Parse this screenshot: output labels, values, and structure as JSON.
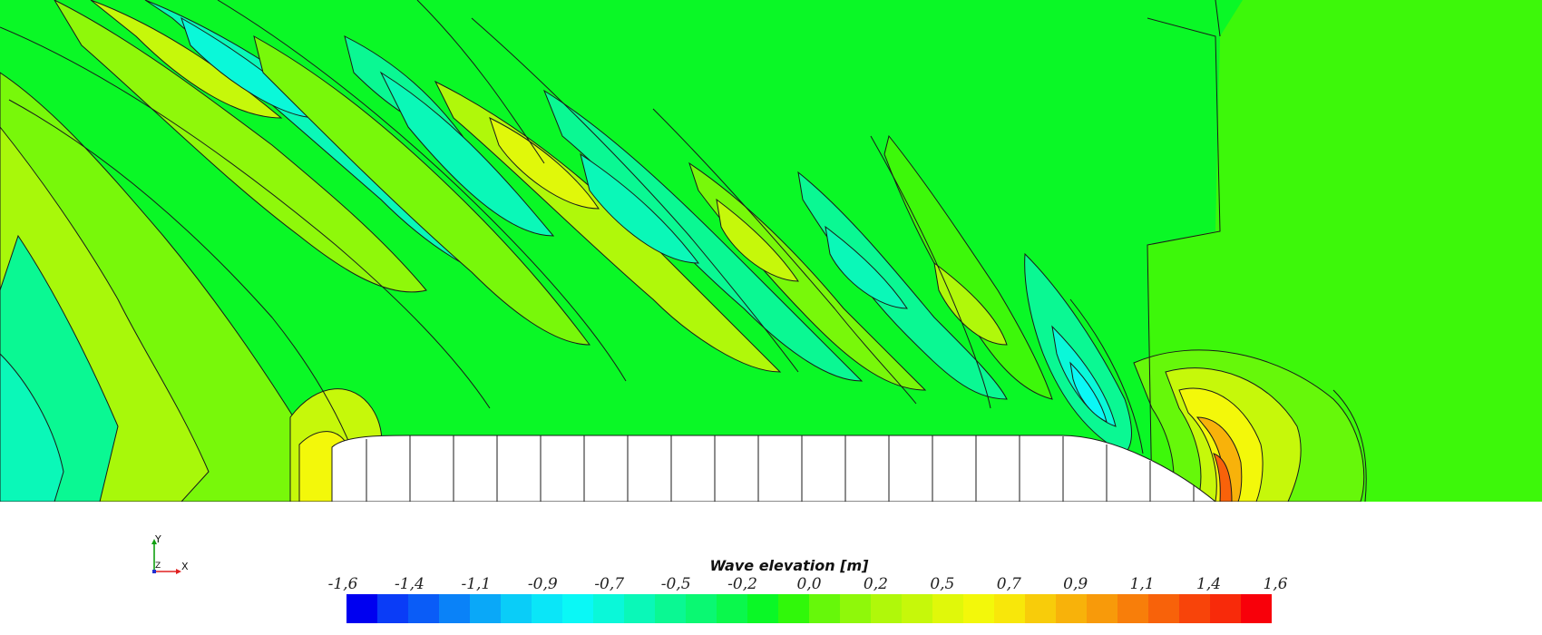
{
  "legend": {
    "title": "Wave elevation [m]",
    "ticks": [
      "-1,6",
      "-1,4",
      "-1,1",
      "-0,9",
      "-0,7",
      "-0,5",
      "-0,2",
      "0,0",
      "0,2",
      "0,5",
      "0,7",
      "0,9",
      "1,1",
      "1,4",
      "1,6"
    ],
    "colors": [
      "#0000f0",
      "#0a3cf7",
      "#0a5cf7",
      "#0a82f8",
      "#0aa8f8",
      "#0acdf8",
      "#0ae6f8",
      "#0af8f6",
      "#0af8d9",
      "#0af8b8",
      "#0af893",
      "#0af872",
      "#0af84c",
      "#0af826",
      "#30f80a",
      "#66f80a",
      "#8ff80a",
      "#b0f80a",
      "#c6f80a",
      "#e0f80a",
      "#f3f80a",
      "#f8e70a",
      "#f8cc0a",
      "#f8b20a",
      "#f89a0a",
      "#f87e0a",
      "#f8620a",
      "#f8440a",
      "#f82a0a",
      "#f8000a"
    ]
  },
  "axes_triad": {
    "y_label": "Y",
    "x_label": "X",
    "z_label": "Z",
    "y_color": "#10a010",
    "x_color": "#e02020",
    "z_color": "#2030d0"
  },
  "field": {
    "background_level": "#0af826",
    "ship_color": "#ffffff"
  }
}
